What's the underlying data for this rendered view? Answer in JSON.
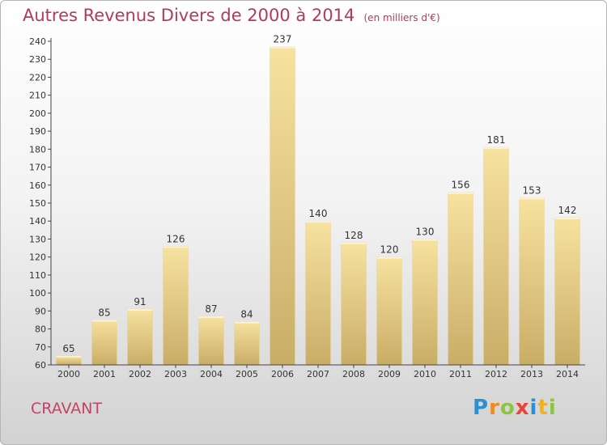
{
  "chart_data": {
    "type": "bar",
    "title": "Autres Revenus Divers de 2000 à 2014",
    "subtitle": "(en milliers d'€)",
    "categories": [
      "2000",
      "2001",
      "2002",
      "2003",
      "2004",
      "2005",
      "2006",
      "2007",
      "2008",
      "2009",
      "2010",
      "2011",
      "2012",
      "2013",
      "2014"
    ],
    "values": [
      65,
      85,
      91,
      126,
      87,
      84,
      237,
      140,
      128,
      120,
      130,
      156,
      181,
      153,
      142
    ],
    "ylim": [
      60,
      240
    ],
    "yticks": [
      60,
      70,
      80,
      90,
      100,
      110,
      120,
      130,
      140,
      150,
      160,
      170,
      180,
      190,
      200,
      210,
      220,
      230,
      240
    ],
    "grid": false,
    "data_labels": true,
    "colors": {
      "bar_light": "#f7e2a0",
      "bar_dark": "#c9ad67",
      "title": "#b13a5f",
      "axis": "#444444"
    }
  },
  "footer": {
    "place": "CRAVANT",
    "brand_letters": [
      {
        "ch": "P",
        "color": "#2e8fd0"
      },
      {
        "ch": "r",
        "color": "#f08a1c"
      },
      {
        "ch": "o",
        "color": "#8cc63f"
      },
      {
        "ch": "x",
        "color": "#e8443a"
      },
      {
        "ch": "i",
        "color": "#2e8fd0"
      },
      {
        "ch": "t",
        "color": "#f0b21c"
      },
      {
        "ch": "i",
        "color": "#8cc63f"
      }
    ]
  }
}
